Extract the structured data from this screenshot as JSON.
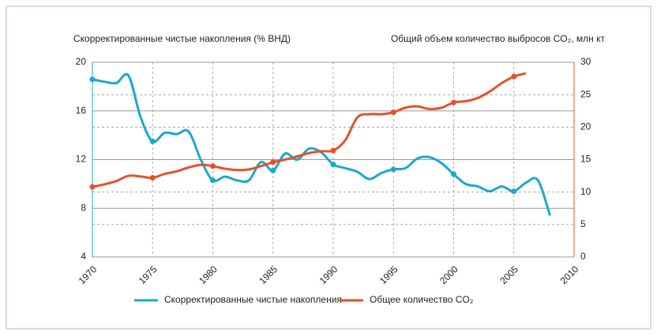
{
  "chart_data": {
    "type": "line",
    "y_label": "Скорректированные чистые накопления (% ВНД)",
    "y2_label": "Общий объем количество выбросов CO₂, млн кт",
    "x": [
      1970,
      1971,
      1972,
      1973,
      1974,
      1975,
      1976,
      1977,
      1978,
      1979,
      1980,
      1981,
      1982,
      1983,
      1984,
      1985,
      1986,
      1987,
      1988,
      1989,
      1990,
      1991,
      1992,
      1993,
      1994,
      1995,
      1996,
      1997,
      1998,
      1999,
      2000,
      2001,
      2002,
      2003,
      2004,
      2005,
      2006,
      2007,
      2008
    ],
    "xlim": [
      1970,
      2010
    ],
    "xticks": [
      1970,
      1975,
      1980,
      1985,
      1990,
      1995,
      2000,
      2005,
      2010
    ],
    "ylim": [
      4,
      20
    ],
    "yticks": [
      4,
      8,
      12,
      16,
      20
    ],
    "y2lim": [
      0,
      30
    ],
    "y2ticks": [
      0,
      5,
      10,
      15,
      20,
      25,
      30
    ],
    "grid": true,
    "legend": "bottom",
    "series": [
      {
        "name": "Скорректированные чистые накопления",
        "color": "#1ba9cc",
        "values": [
          18.6,
          18.4,
          18.3,
          18.9,
          15.5,
          13.5,
          14.2,
          14.1,
          14.3,
          12.0,
          10.3,
          10.6,
          10.3,
          10.3,
          11.8,
          11.1,
          12.5,
          12.0,
          12.9,
          12.6,
          11.6,
          11.3,
          11.0,
          10.4,
          10.9,
          11.2,
          11.3,
          12.1,
          12.2,
          11.7,
          10.8,
          10.0,
          9.8,
          9.4,
          9.8,
          9.4,
          10.1,
          10.3,
          7.4
        ]
      },
      {
        "name": "Общее количество CO₂",
        "color": "#e5512a",
        "axis": "y2",
        "values": [
          10.8,
          11.2,
          11.7,
          12.5,
          12.4,
          12.2,
          12.8,
          13.2,
          13.8,
          14.2,
          14.0,
          13.6,
          13.4,
          13.5,
          14.0,
          14.6,
          15.0,
          15.5,
          16.0,
          16.3,
          16.4,
          18.0,
          21.5,
          22.0,
          22.0,
          22.3,
          23.0,
          23.2,
          22.8,
          23.0,
          23.8,
          24.0,
          24.5,
          25.5,
          26.8,
          27.8,
          28.3,
          null,
          null
        ]
      }
    ]
  }
}
